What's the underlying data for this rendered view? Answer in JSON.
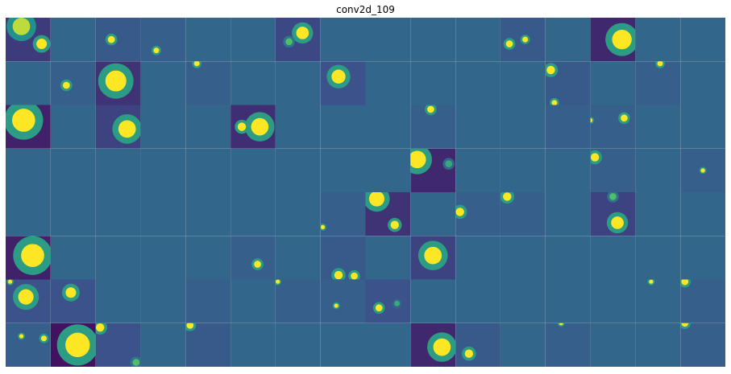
{
  "chart_data": {
    "type": "heatmap",
    "title": "conv2d_109",
    "xlabel": "",
    "ylabel": "",
    "grid": false,
    "axes_visible": false,
    "layout": {
      "rows": 8,
      "cols": 16
    },
    "colormap": "viridis",
    "value_range": [
      0,
      1
    ],
    "palette": {
      "dark": "#440154",
      "base": "#3b528b",
      "mid": "#21918c",
      "light": "#5ec962",
      "bright": "#fde725"
    },
    "tiles": [
      {
        "row": 0,
        "col": 0,
        "bg": 0.18,
        "blobs": [
          {
            "x": 0.35,
            "y": 0.2,
            "r": 0.25,
            "v": 0.9
          },
          {
            "x": 0.8,
            "y": 0.6,
            "r": 0.15,
            "v": 1
          }
        ]
      },
      {
        "row": 0,
        "col": 1,
        "bg": 0.33,
        "blobs": []
      },
      {
        "row": 0,
        "col": 2,
        "bg": 0.28,
        "blobs": [
          {
            "x": 0.35,
            "y": 0.5,
            "r": 0.1,
            "v": 1
          }
        ]
      },
      {
        "row": 0,
        "col": 3,
        "bg": 0.3,
        "blobs": [
          {
            "x": 0.35,
            "y": 0.75,
            "r": 0.08,
            "v": 1
          }
        ]
      },
      {
        "row": 0,
        "col": 4,
        "bg": 0.33,
        "blobs": []
      },
      {
        "row": 0,
        "col": 5,
        "bg": 0.33,
        "blobs": []
      },
      {
        "row": 0,
        "col": 6,
        "bg": 0.22,
        "blobs": [
          {
            "x": 0.6,
            "y": 0.35,
            "r": 0.18,
            "v": 1
          },
          {
            "x": 0.3,
            "y": 0.55,
            "r": 0.1,
            "v": 0.7
          }
        ]
      },
      {
        "row": 0,
        "col": 7,
        "bg": 0.33,
        "blobs": []
      },
      {
        "row": 0,
        "col": 8,
        "bg": 0.33,
        "blobs": []
      },
      {
        "row": 0,
        "col": 9,
        "bg": 0.33,
        "blobs": []
      },
      {
        "row": 0,
        "col": 10,
        "bg": 0.33,
        "blobs": []
      },
      {
        "row": 0,
        "col": 11,
        "bg": 0.28,
        "blobs": [
          {
            "x": 0.2,
            "y": 0.6,
            "r": 0.1,
            "v": 1
          },
          {
            "x": 0.55,
            "y": 0.5,
            "r": 0.08,
            "v": 1
          }
        ]
      },
      {
        "row": 0,
        "col": 12,
        "bg": 0.33,
        "blobs": []
      },
      {
        "row": 0,
        "col": 13,
        "bg": 0.12,
        "blobs": [
          {
            "x": 0.7,
            "y": 0.5,
            "r": 0.28,
            "v": 1
          }
        ]
      },
      {
        "row": 0,
        "col": 14,
        "bg": 0.33,
        "blobs": []
      },
      {
        "row": 0,
        "col": 15,
        "bg": 0.33,
        "blobs": []
      },
      {
        "row": 1,
        "col": 0,
        "bg": 0.33,
        "blobs": []
      },
      {
        "row": 1,
        "col": 1,
        "bg": 0.3,
        "blobs": [
          {
            "x": 0.35,
            "y": 0.55,
            "r": 0.1,
            "v": 1
          }
        ]
      },
      {
        "row": 1,
        "col": 2,
        "bg": 0.15,
        "blobs": [
          {
            "x": 0.45,
            "y": 0.45,
            "r": 0.3,
            "v": 1
          }
        ]
      },
      {
        "row": 1,
        "col": 3,
        "bg": 0.33,
        "blobs": []
      },
      {
        "row": 1,
        "col": 4,
        "bg": 0.3,
        "blobs": [
          {
            "x": 0.25,
            "y": 0.05,
            "r": 0.08,
            "v": 1
          }
        ]
      },
      {
        "row": 1,
        "col": 5,
        "bg": 0.33,
        "blobs": []
      },
      {
        "row": 1,
        "col": 6,
        "bg": 0.33,
        "blobs": []
      },
      {
        "row": 1,
        "col": 7,
        "bg": 0.25,
        "blobs": [
          {
            "x": 0.4,
            "y": 0.35,
            "r": 0.2,
            "v": 1
          }
        ]
      },
      {
        "row": 1,
        "col": 8,
        "bg": 0.33,
        "blobs": []
      },
      {
        "row": 1,
        "col": 9,
        "bg": 0.33,
        "blobs": []
      },
      {
        "row": 1,
        "col": 10,
        "bg": 0.33,
        "blobs": []
      },
      {
        "row": 1,
        "col": 11,
        "bg": 0.33,
        "blobs": []
      },
      {
        "row": 1,
        "col": 12,
        "bg": 0.28,
        "blobs": [
          {
            "x": 0.12,
            "y": 0.2,
            "r": 0.12,
            "v": 1
          },
          {
            "x": 0.2,
            "y": 0.95,
            "r": 0.08,
            "v": 1
          }
        ]
      },
      {
        "row": 1,
        "col": 13,
        "bg": 0.33,
        "blobs": []
      },
      {
        "row": 1,
        "col": 14,
        "bg": 0.3,
        "blobs": [
          {
            "x": 0.55,
            "y": 0.05,
            "r": 0.08,
            "v": 1
          }
        ]
      },
      {
        "row": 1,
        "col": 15,
        "bg": 0.33,
        "blobs": []
      },
      {
        "row": 2,
        "col": 0,
        "bg": 0.1,
        "blobs": [
          {
            "x": 0.4,
            "y": 0.35,
            "r": 0.33,
            "v": 1
          }
        ]
      },
      {
        "row": 2,
        "col": 1,
        "bg": 0.33,
        "blobs": []
      },
      {
        "row": 2,
        "col": 2,
        "bg": 0.2,
        "blobs": [
          {
            "x": 0.7,
            "y": 0.55,
            "r": 0.25,
            "v": 1
          }
        ]
      },
      {
        "row": 2,
        "col": 3,
        "bg": 0.33,
        "blobs": []
      },
      {
        "row": 2,
        "col": 4,
        "bg": 0.33,
        "blobs": []
      },
      {
        "row": 2,
        "col": 5,
        "bg": 0.14,
        "blobs": [
          {
            "x": 0.65,
            "y": 0.5,
            "r": 0.25,
            "v": 1
          },
          {
            "x": 0.25,
            "y": 0.5,
            "r": 0.12,
            "v": 1
          }
        ]
      },
      {
        "row": 2,
        "col": 6,
        "bg": 0.33,
        "blobs": []
      },
      {
        "row": 2,
        "col": 7,
        "bg": 0.33,
        "blobs": []
      },
      {
        "row": 2,
        "col": 8,
        "bg": 0.33,
        "blobs": []
      },
      {
        "row": 2,
        "col": 9,
        "bg": 0.3,
        "blobs": [
          {
            "x": 0.45,
            "y": 0.1,
            "r": 0.1,
            "v": 1
          }
        ]
      },
      {
        "row": 2,
        "col": 10,
        "bg": 0.33,
        "blobs": []
      },
      {
        "row": 2,
        "col": 11,
        "bg": 0.33,
        "blobs": []
      },
      {
        "row": 2,
        "col": 12,
        "bg": 0.3,
        "blobs": []
      },
      {
        "row": 2,
        "col": 13,
        "bg": 0.3,
        "blobs": [
          {
            "x": 0.75,
            "y": 0.3,
            "r": 0.1,
            "v": 1
          },
          {
            "x": 0.0,
            "y": 0.35,
            "r": 0.06,
            "v": 1
          }
        ]
      },
      {
        "row": 2,
        "col": 14,
        "bg": 0.33,
        "blobs": []
      },
      {
        "row": 2,
        "col": 15,
        "bg": 0.33,
        "blobs": []
      },
      {
        "row": 3,
        "col": 0,
        "bg": 0.33,
        "blobs": []
      },
      {
        "row": 3,
        "col": 1,
        "bg": 0.33,
        "blobs": []
      },
      {
        "row": 3,
        "col": 2,
        "bg": 0.33,
        "blobs": []
      },
      {
        "row": 3,
        "col": 3,
        "bg": 0.33,
        "blobs": []
      },
      {
        "row": 3,
        "col": 4,
        "bg": 0.33,
        "blobs": []
      },
      {
        "row": 3,
        "col": 5,
        "bg": 0.33,
        "blobs": []
      },
      {
        "row": 3,
        "col": 6,
        "bg": 0.33,
        "blobs": []
      },
      {
        "row": 3,
        "col": 7,
        "bg": 0.33,
        "blobs": []
      },
      {
        "row": 3,
        "col": 8,
        "bg": 0.33,
        "blobs": []
      },
      {
        "row": 3,
        "col": 9,
        "bg": 0.12,
        "blobs": [
          {
            "x": 0.15,
            "y": 0.25,
            "r": 0.25,
            "v": 1
          },
          {
            "x": 0.85,
            "y": 0.35,
            "r": 0.1,
            "v": 0.6
          }
        ]
      },
      {
        "row": 3,
        "col": 10,
        "bg": 0.33,
        "blobs": []
      },
      {
        "row": 3,
        "col": 11,
        "bg": 0.33,
        "blobs": []
      },
      {
        "row": 3,
        "col": 12,
        "bg": 0.33,
        "blobs": []
      },
      {
        "row": 3,
        "col": 13,
        "bg": 0.3,
        "blobs": [
          {
            "x": 0.1,
            "y": 0.2,
            "r": 0.12,
            "v": 1
          }
        ]
      },
      {
        "row": 3,
        "col": 14,
        "bg": 0.33,
        "blobs": []
      },
      {
        "row": 3,
        "col": 15,
        "bg": 0.3,
        "blobs": [
          {
            "x": 0.5,
            "y": 0.5,
            "r": 0.06,
            "v": 1
          }
        ]
      },
      {
        "row": 4,
        "col": 0,
        "bg": 0.33,
        "blobs": []
      },
      {
        "row": 4,
        "col": 1,
        "bg": 0.33,
        "blobs": []
      },
      {
        "row": 4,
        "col": 2,
        "bg": 0.33,
        "blobs": []
      },
      {
        "row": 4,
        "col": 3,
        "bg": 0.33,
        "blobs": []
      },
      {
        "row": 4,
        "col": 4,
        "bg": 0.33,
        "blobs": []
      },
      {
        "row": 4,
        "col": 5,
        "bg": 0.33,
        "blobs": []
      },
      {
        "row": 4,
        "col": 6,
        "bg": 0.33,
        "blobs": []
      },
      {
        "row": 4,
        "col": 7,
        "bg": 0.3,
        "blobs": [
          {
            "x": 0.05,
            "y": 0.8,
            "r": 0.06,
            "v": 1
          }
        ]
      },
      {
        "row": 4,
        "col": 8,
        "bg": 0.15,
        "blobs": [
          {
            "x": 0.25,
            "y": 0.15,
            "r": 0.22,
            "v": 1
          },
          {
            "x": 0.65,
            "y": 0.75,
            "r": 0.12,
            "v": 1
          }
        ]
      },
      {
        "row": 4,
        "col": 9,
        "bg": 0.33,
        "blobs": []
      },
      {
        "row": 4,
        "col": 10,
        "bg": 0.3,
        "blobs": [
          {
            "x": 0.1,
            "y": 0.45,
            "r": 0.12,
            "v": 1
          }
        ]
      },
      {
        "row": 4,
        "col": 11,
        "bg": 0.3,
        "blobs": [
          {
            "x": 0.15,
            "y": 0.1,
            "r": 0.12,
            "v": 1
          }
        ]
      },
      {
        "row": 4,
        "col": 12,
        "bg": 0.33,
        "blobs": []
      },
      {
        "row": 4,
        "col": 13,
        "bg": 0.2,
        "blobs": [
          {
            "x": 0.6,
            "y": 0.7,
            "r": 0.18,
            "v": 1
          },
          {
            "x": 0.5,
            "y": 0.1,
            "r": 0.1,
            "v": 0.7
          }
        ]
      },
      {
        "row": 4,
        "col": 14,
        "bg": 0.33,
        "blobs": []
      },
      {
        "row": 4,
        "col": 15,
        "bg": 0.33,
        "blobs": []
      },
      {
        "row": 5,
        "col": 0,
        "bg": 0.1,
        "blobs": [
          {
            "x": 0.6,
            "y": 0.45,
            "r": 0.33,
            "v": 1
          }
        ]
      },
      {
        "row": 5,
        "col": 1,
        "bg": 0.33,
        "blobs": []
      },
      {
        "row": 5,
        "col": 2,
        "bg": 0.33,
        "blobs": []
      },
      {
        "row": 5,
        "col": 3,
        "bg": 0.33,
        "blobs": []
      },
      {
        "row": 5,
        "col": 4,
        "bg": 0.33,
        "blobs": []
      },
      {
        "row": 5,
        "col": 5,
        "bg": 0.3,
        "blobs": [
          {
            "x": 0.6,
            "y": 0.65,
            "r": 0.1,
            "v": 1
          }
        ]
      },
      {
        "row": 5,
        "col": 6,
        "bg": 0.33,
        "blobs": []
      },
      {
        "row": 5,
        "col": 7,
        "bg": 0.28,
        "blobs": [
          {
            "x": 0.4,
            "y": 0.9,
            "r": 0.12,
            "v": 1
          },
          {
            "x": 0.75,
            "y": 0.92,
            "r": 0.1,
            "v": 1
          }
        ]
      },
      {
        "row": 5,
        "col": 8,
        "bg": 0.33,
        "blobs": []
      },
      {
        "row": 5,
        "col": 9,
        "bg": 0.2,
        "blobs": [
          {
            "x": 0.5,
            "y": 0.45,
            "r": 0.25,
            "v": 1
          }
        ]
      },
      {
        "row": 5,
        "col": 10,
        "bg": 0.33,
        "blobs": []
      },
      {
        "row": 5,
        "col": 11,
        "bg": 0.33,
        "blobs": []
      },
      {
        "row": 5,
        "col": 12,
        "bg": 0.33,
        "blobs": []
      },
      {
        "row": 5,
        "col": 13,
        "bg": 0.33,
        "blobs": []
      },
      {
        "row": 5,
        "col": 14,
        "bg": 0.33,
        "blobs": []
      },
      {
        "row": 5,
        "col": 15,
        "bg": 0.33,
        "blobs": []
      },
      {
        "row": 6,
        "col": 0,
        "bg": 0.25,
        "blobs": [
          {
            "x": 0.45,
            "y": 0.4,
            "r": 0.22,
            "v": 1
          },
          {
            "x": 0.1,
            "y": 0.05,
            "r": 0.06,
            "v": 1
          }
        ]
      },
      {
        "row": 6,
        "col": 1,
        "bg": 0.25,
        "blobs": [
          {
            "x": 0.45,
            "y": 0.3,
            "r": 0.15,
            "v": 1
          }
        ]
      },
      {
        "row": 6,
        "col": 2,
        "bg": 0.33,
        "blobs": []
      },
      {
        "row": 6,
        "col": 3,
        "bg": 0.33,
        "blobs": []
      },
      {
        "row": 6,
        "col": 4,
        "bg": 0.3,
        "blobs": []
      },
      {
        "row": 6,
        "col": 5,
        "bg": 0.33,
        "blobs": []
      },
      {
        "row": 6,
        "col": 6,
        "bg": 0.3,
        "blobs": [
          {
            "x": 0.05,
            "y": 0.05,
            "r": 0.06,
            "v": 1
          }
        ]
      },
      {
        "row": 6,
        "col": 7,
        "bg": 0.3,
        "blobs": [
          {
            "x": 0.35,
            "y": 0.6,
            "r": 0.06,
            "v": 1
          }
        ]
      },
      {
        "row": 6,
        "col": 8,
        "bg": 0.25,
        "blobs": [
          {
            "x": 0.3,
            "y": 0.65,
            "r": 0.1,
            "v": 1
          },
          {
            "x": 0.7,
            "y": 0.55,
            "r": 0.08,
            "v": 0.6
          }
        ]
      },
      {
        "row": 6,
        "col": 9,
        "bg": 0.33,
        "blobs": []
      },
      {
        "row": 6,
        "col": 10,
        "bg": 0.33,
        "blobs": []
      },
      {
        "row": 6,
        "col": 11,
        "bg": 0.33,
        "blobs": []
      },
      {
        "row": 6,
        "col": 12,
        "bg": 0.33,
        "blobs": []
      },
      {
        "row": 6,
        "col": 13,
        "bg": 0.33,
        "blobs": []
      },
      {
        "row": 6,
        "col": 14,
        "bg": 0.33,
        "blobs": [
          {
            "x": 0.35,
            "y": 0.05,
            "r": 0.06,
            "v": 1
          }
        ]
      },
      {
        "row": 6,
        "col": 15,
        "bg": 0.3,
        "blobs": [
          {
            "x": 0.1,
            "y": 0.05,
            "r": 0.1,
            "v": 1
          }
        ]
      },
      {
        "row": 7,
        "col": 0,
        "bg": 0.3,
        "blobs": [
          {
            "x": 0.35,
            "y": 0.3,
            "r": 0.06,
            "v": 1
          },
          {
            "x": 0.85,
            "y": 0.35,
            "r": 0.08,
            "v": 1
          }
        ]
      },
      {
        "row": 7,
        "col": 1,
        "bg": 0.05,
        "blobs": [
          {
            "x": 0.6,
            "y": 0.5,
            "r": 0.35,
            "v": 1
          }
        ]
      },
      {
        "row": 7,
        "col": 2,
        "bg": 0.25,
        "blobs": [
          {
            "x": 0.1,
            "y": 0.1,
            "r": 0.12,
            "v": 1
          },
          {
            "x": 0.9,
            "y": 0.9,
            "r": 0.1,
            "v": 0.7
          }
        ]
      },
      {
        "row": 7,
        "col": 3,
        "bg": 0.33,
        "blobs": []
      },
      {
        "row": 7,
        "col": 4,
        "bg": 0.28,
        "blobs": [
          {
            "x": 0.1,
            "y": 0.05,
            "r": 0.1,
            "v": 1
          }
        ]
      },
      {
        "row": 7,
        "col": 5,
        "bg": 0.33,
        "blobs": []
      },
      {
        "row": 7,
        "col": 6,
        "bg": 0.33,
        "blobs": []
      },
      {
        "row": 7,
        "col": 7,
        "bg": 0.33,
        "blobs": []
      },
      {
        "row": 7,
        "col": 8,
        "bg": 0.33,
        "blobs": []
      },
      {
        "row": 7,
        "col": 9,
        "bg": 0.12,
        "blobs": [
          {
            "x": 0.7,
            "y": 0.55,
            "r": 0.25,
            "v": 1
          }
        ]
      },
      {
        "row": 7,
        "col": 10,
        "bg": 0.28,
        "blobs": [
          {
            "x": 0.3,
            "y": 0.7,
            "r": 0.12,
            "v": 1
          }
        ]
      },
      {
        "row": 7,
        "col": 11,
        "bg": 0.33,
        "blobs": []
      },
      {
        "row": 7,
        "col": 12,
        "bg": 0.3,
        "blobs": [
          {
            "x": 0.35,
            "y": 0.0,
            "r": 0.06,
            "v": 1
          }
        ]
      },
      {
        "row": 7,
        "col": 13,
        "bg": 0.33,
        "blobs": []
      },
      {
        "row": 7,
        "col": 14,
        "bg": 0.33,
        "blobs": []
      },
      {
        "row": 7,
        "col": 15,
        "bg": 0.3,
        "blobs": [
          {
            "x": 0.1,
            "y": 0.0,
            "r": 0.1,
            "v": 1
          }
        ]
      }
    ]
  }
}
